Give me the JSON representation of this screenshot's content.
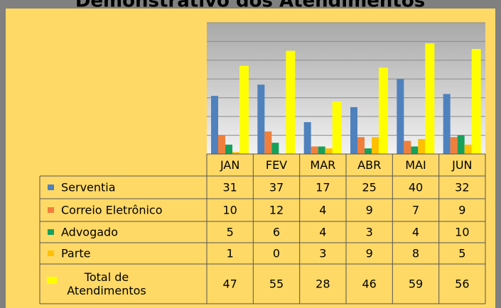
{
  "chart_data": {
    "type": "bar",
    "title": "Demonstrativo dos Atendimentos",
    "categories": [
      "JAN",
      "FEV",
      "MAR",
      "ABR",
      "MAI",
      "JUN"
    ],
    "series": [
      {
        "name": "Serventia",
        "color": "#4F81BD",
        "values": [
          31,
          37,
          17,
          25,
          40,
          32
        ]
      },
      {
        "name": "Correio Eletrônico",
        "color": "#F07F3C",
        "values": [
          10,
          12,
          4,
          9,
          7,
          9
        ]
      },
      {
        "name": "Advogado",
        "color": "#17A05A",
        "values": [
          5,
          6,
          4,
          3,
          4,
          10
        ]
      },
      {
        "name": "Parte",
        "color": "#FFC000",
        "values": [
          1,
          0,
          3,
          9,
          8,
          5
        ]
      },
      {
        "name": "Total de Atendimentos",
        "color": "#FFFF00",
        "values": [
          47,
          55,
          28,
          46,
          59,
          56
        ]
      }
    ],
    "ylim": [
      0,
      70
    ],
    "yticks": [
      0,
      10,
      20,
      30,
      40,
      50,
      60,
      70
    ],
    "grid": true
  }
}
